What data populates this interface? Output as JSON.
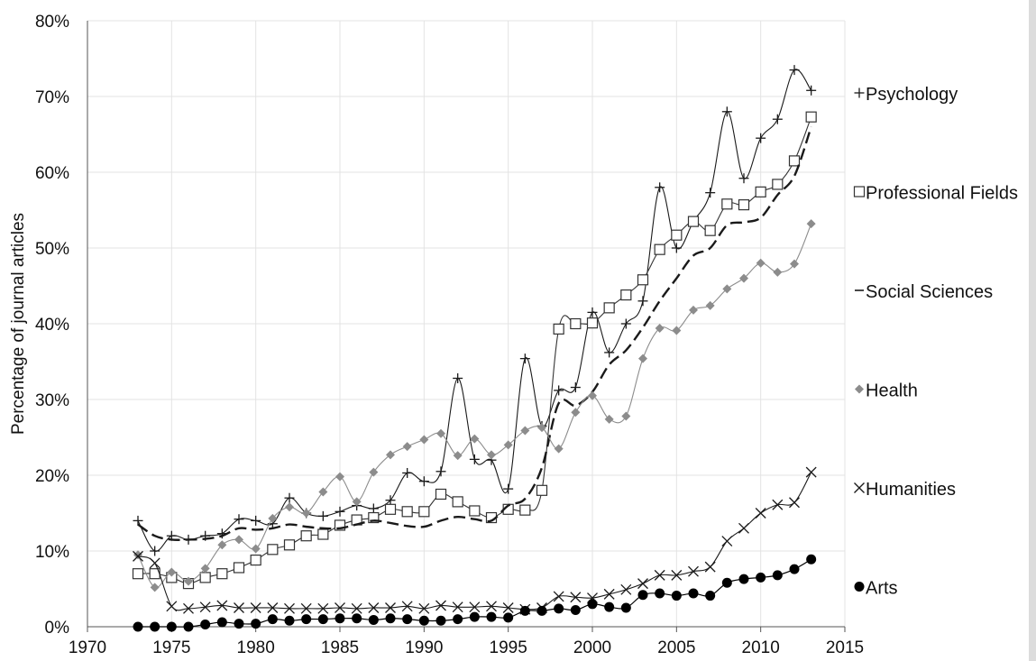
{
  "chart_data": {
    "type": "line",
    "ylabel": "Percentage of journal articles",
    "xlim": [
      1970,
      2015
    ],
    "ylim": [
      0,
      80
    ],
    "x_ticks": [
      "1970",
      "1975",
      "1980",
      "1985",
      "1990",
      "1995",
      "2000",
      "2005",
      "2010",
      "2015"
    ],
    "y_ticks": [
      "0%",
      "10%",
      "20%",
      "30%",
      "40%",
      "50%",
      "60%",
      "70%",
      "80%"
    ],
    "grid": true,
    "legend_position": "right",
    "x": [
      1973,
      1974,
      1975,
      1976,
      1977,
      1978,
      1979,
      1980,
      1981,
      1982,
      1983,
      1984,
      1985,
      1986,
      1987,
      1988,
      1989,
      1990,
      1991,
      1992,
      1993,
      1994,
      1995,
      1996,
      1997,
      1998,
      1999,
      2000,
      2001,
      2002,
      2003,
      2004,
      2005,
      2006,
      2007,
      2008,
      2009,
      2010,
      2011,
      2012,
      2013
    ],
    "series": [
      {
        "name": "Psychology",
        "marker": "plus",
        "color": "#1a1a1a",
        "values": [
          14,
          10,
          12,
          11.5,
          12,
          12.3,
          14.2,
          14,
          13.6,
          17,
          15,
          14.6,
          15.2,
          16,
          15.6,
          16.7,
          20.3,
          19.2,
          20.5,
          32.8,
          22.1,
          22,
          18.2,
          35.4,
          26.5,
          31.2,
          31.6,
          41.5,
          36.2,
          40,
          43,
          58,
          50,
          53.5,
          57.3,
          68,
          59.2,
          64.5,
          67,
          73.5,
          70.8
        ]
      },
      {
        "name": "Professional Fields",
        "marker": "square",
        "color": "#333333",
        "values": [
          7,
          7,
          6.5,
          5.7,
          6.5,
          7,
          7.8,
          8.8,
          10.2,
          10.8,
          12,
          12.2,
          13.4,
          14.1,
          14.4,
          15.5,
          15.2,
          15.2,
          17.5,
          16.5,
          15.3,
          14.4,
          15.5,
          15.4,
          18,
          39.3,
          40,
          40.1,
          42.1,
          43.8,
          45.8,
          49.8,
          51.7,
          53.5,
          52.3,
          55.8,
          55.7,
          57.4,
          58.4,
          61.5,
          67.3
        ]
      },
      {
        "name": "Social Sciences",
        "marker": "dash",
        "color": "#1a1a1a",
        "values": [
          13.5,
          12,
          11.5,
          11.5,
          11.6,
          12,
          13,
          12.8,
          13,
          13.5,
          13.2,
          13,
          13,
          13.5,
          14,
          13.7,
          13.3,
          13.2,
          14,
          14.5,
          14.2,
          14,
          16,
          16.9,
          21,
          29.5,
          29.2,
          31,
          34.6,
          36.5,
          39.5,
          43,
          46,
          49,
          50,
          53,
          53.4,
          54,
          57,
          59.5,
          66
        ]
      },
      {
        "name": "Health",
        "marker": "diamond",
        "color": "#8c8c8c",
        "values": [
          9.5,
          5.2,
          7.2,
          6,
          7.7,
          10.8,
          11.5,
          10.3,
          14.3,
          15.8,
          15,
          17.8,
          19.8,
          16.5,
          20.4,
          22.7,
          23.8,
          24.7,
          25.5,
          22.6,
          24.8,
          22.7,
          24,
          25.9,
          26.3,
          23.5,
          28.3,
          30.5,
          27.4,
          27.8,
          35.4,
          39.4,
          39.1,
          41.8,
          42.4,
          44.6,
          46,
          48,
          46.8,
          47.9,
          53.2
        ]
      },
      {
        "name": "Humanities",
        "marker": "cross",
        "color": "#1a1a1a",
        "values": [
          9.3,
          8.4,
          2.7,
          2.4,
          2.6,
          2.8,
          2.5,
          2.5,
          2.5,
          2.4,
          2.4,
          2.4,
          2.5,
          2.4,
          2.5,
          2.5,
          2.7,
          2.4,
          2.8,
          2.6,
          2.6,
          2.7,
          2.5,
          2.3,
          2.5,
          4,
          3.9,
          3.8,
          4.3,
          4.9,
          5.7,
          6.8,
          6.8,
          7.3,
          7.9,
          11.3,
          13,
          15,
          16.1,
          16.4,
          20.4
        ]
      },
      {
        "name": "Arts",
        "marker": "circle",
        "color": "#000000",
        "values": [
          0,
          0,
          0,
          0,
          0.3,
          0.6,
          0.4,
          0.4,
          1,
          0.8,
          1,
          1,
          1.1,
          1.1,
          0.9,
          1.1,
          1,
          0.8,
          0.8,
          1,
          1.3,
          1.3,
          1.2,
          2.1,
          2.1,
          2.4,
          2.2,
          3,
          2.6,
          2.5,
          4.2,
          4.4,
          4.1,
          4.4,
          4.1,
          5.8,
          6.3,
          6.5,
          6.8,
          7.6,
          8.9
        ]
      }
    ]
  }
}
